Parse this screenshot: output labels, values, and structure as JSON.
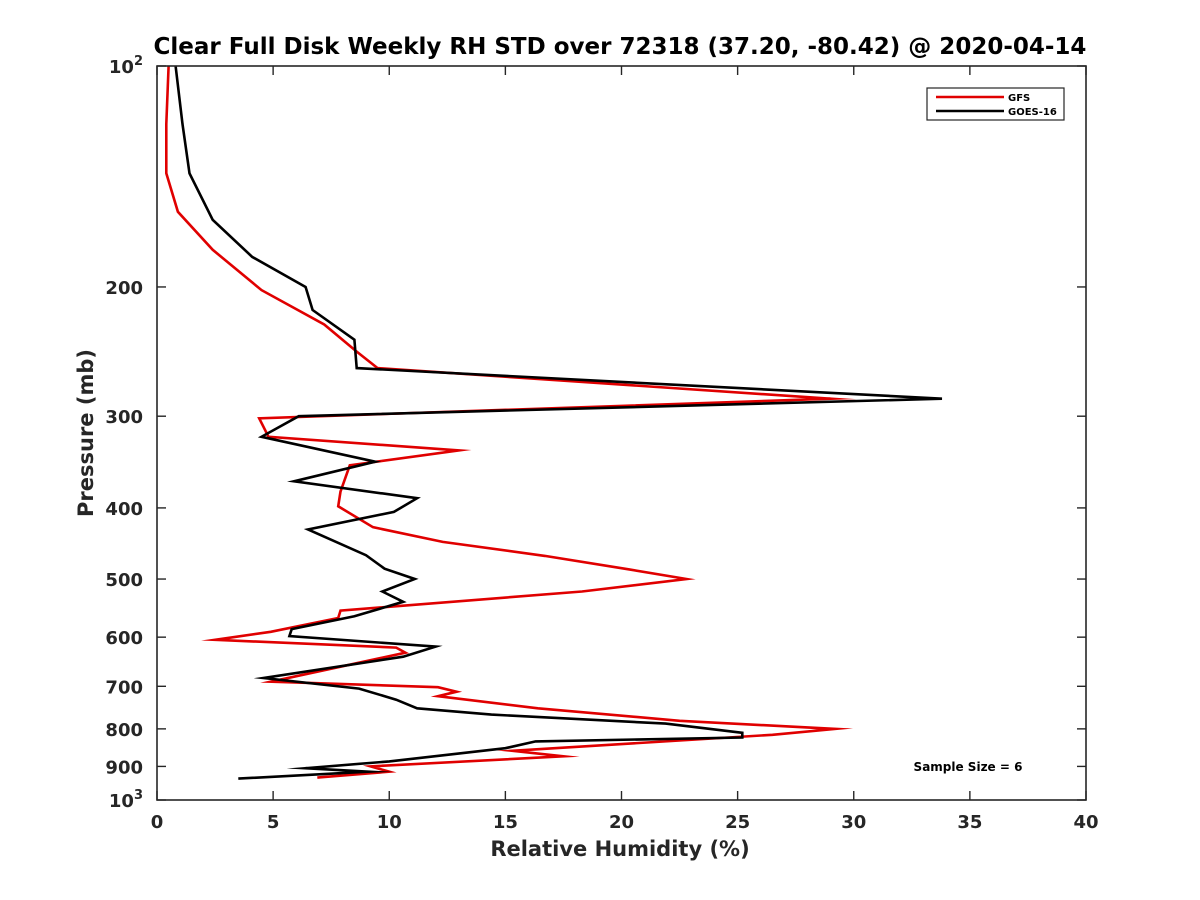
{
  "chart_data": {
    "type": "line",
    "title": "Clear Full Disk Weekly RH STD over 72318 (37.20, -80.42) @ 2020-04-14",
    "xlabel": "Relative Humidity (%)",
    "ylabel": "Pressure (mb)",
    "xlim": [
      0,
      40
    ],
    "ylim": [
      100,
      1000
    ],
    "y_scale": "log",
    "y_reversed": true,
    "grid": false,
    "legend_position": "top-right",
    "x_ticks": [
      "0",
      "5",
      "10",
      "15",
      "20",
      "25",
      "30",
      "35",
      "40"
    ],
    "y_ticks": [
      {
        "value": 100,
        "label": "10",
        "sup": "2"
      },
      {
        "value": 200,
        "label": "200"
      },
      {
        "value": 300,
        "label": "300"
      },
      {
        "value": 400,
        "label": "400"
      },
      {
        "value": 500,
        "label": "500"
      },
      {
        "value": 600,
        "label": "600"
      },
      {
        "value": 700,
        "label": "700"
      },
      {
        "value": 800,
        "label": "800"
      },
      {
        "value": 900,
        "label": "900"
      },
      {
        "value": 1000,
        "label": "10",
        "sup": "3"
      }
    ],
    "annotation": "Sample Size = 6",
    "series": [
      {
        "name": "GFS",
        "color": "#e00000",
        "points": [
          [
            0.5,
            100
          ],
          [
            0.4,
            120
          ],
          [
            0.4,
            140
          ],
          [
            0.9,
            158
          ],
          [
            2.4,
            178
          ],
          [
            4.5,
            202
          ],
          [
            7.2,
            225
          ],
          [
            8.6,
            245
          ],
          [
            9.5,
            258
          ],
          [
            29.0,
            284
          ],
          [
            4.4,
            302
          ],
          [
            4.8,
            320
          ],
          [
            13.0,
            334
          ],
          [
            8.3,
            350
          ],
          [
            7.9,
            380
          ],
          [
            7.8,
            398
          ],
          [
            9.3,
            425
          ],
          [
            12.3,
            445
          ],
          [
            16.7,
            465
          ],
          [
            20.3,
            485
          ],
          [
            22.8,
            500
          ],
          [
            18.3,
            520
          ],
          [
            7.9,
            552
          ],
          [
            7.8,
            565
          ],
          [
            4.9,
            590
          ],
          [
            2.5,
            605
          ],
          [
            10.3,
            620
          ],
          [
            10.7,
            630
          ],
          [
            4.9,
            690
          ],
          [
            12.1,
            702
          ],
          [
            12.9,
            712
          ],
          [
            12.1,
            722
          ],
          [
            16.4,
            750
          ],
          [
            22.5,
            780
          ],
          [
            29.2,
            800
          ],
          [
            26.5,
            815
          ],
          [
            15.3,
            857
          ],
          [
            17.5,
            872
          ],
          [
            9.2,
            900
          ],
          [
            10.0,
            915
          ],
          [
            6.9,
            932
          ]
        ]
      },
      {
        "name": "GOES-16",
        "color": "#000000",
        "points": [
          [
            0.8,
            100
          ],
          [
            1.1,
            120
          ],
          [
            1.4,
            140
          ],
          [
            2.4,
            162
          ],
          [
            4.1,
            182
          ],
          [
            6.4,
            200
          ],
          [
            6.7,
            215
          ],
          [
            8.5,
            236
          ],
          [
            8.6,
            258
          ],
          [
            33.8,
            284
          ],
          [
            6.1,
            300
          ],
          [
            4.5,
            320
          ],
          [
            9.4,
            346
          ],
          [
            5.9,
            368
          ],
          [
            11.2,
            388
          ],
          [
            10.2,
            405
          ],
          [
            6.5,
            428
          ],
          [
            9.0,
            464
          ],
          [
            9.8,
            484
          ],
          [
            11.1,
            500
          ],
          [
            9.7,
            520
          ],
          [
            10.6,
            537
          ],
          [
            8.5,
            562
          ],
          [
            5.8,
            585
          ],
          [
            5.7,
            598
          ],
          [
            12.0,
            618
          ],
          [
            10.6,
            638
          ],
          [
            4.6,
            682
          ],
          [
            8.7,
            705
          ],
          [
            10.3,
            730
          ],
          [
            11.2,
            750
          ],
          [
            14.4,
            765
          ],
          [
            21.9,
            787
          ],
          [
            25.2,
            810
          ],
          [
            25.2,
            822
          ],
          [
            16.3,
            832
          ],
          [
            15.0,
            850
          ],
          [
            10.0,
            886
          ],
          [
            6.4,
            905
          ],
          [
            9.1,
            915
          ],
          [
            3.5,
            935
          ]
        ]
      }
    ]
  }
}
